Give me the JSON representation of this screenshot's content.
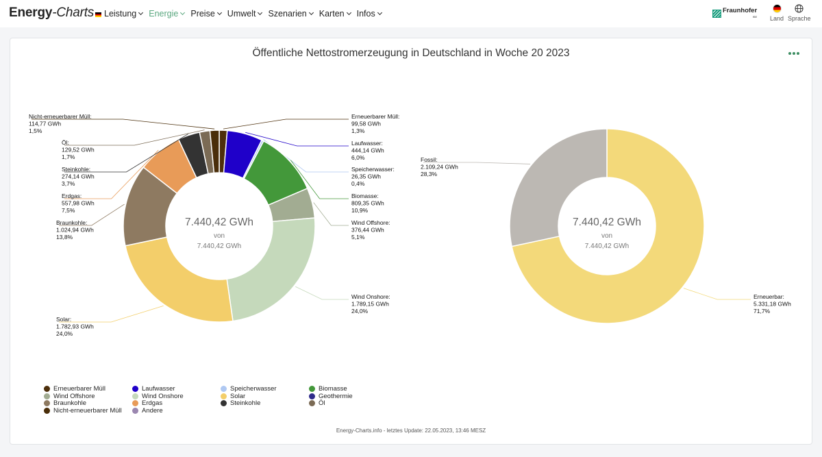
{
  "header": {
    "brand_bold": "Energy",
    "brand_thin": "-Charts",
    "nav": [
      "Leistung",
      "Energie",
      "Preise",
      "Umwelt",
      "Szenarien",
      "Karten",
      "Infos"
    ],
    "active_nav": "Energie",
    "partner": "Fraunhofer",
    "partner_sub": "ISE",
    "country_label": "Land",
    "language_label": "Sprache"
  },
  "footer": "Energy-Charts.info - letztes Update: 22.05.2023, 13:46 MESZ",
  "colors": {
    "accent": "#5aa77f",
    "menu_dots": "#3e8e63"
  },
  "chart_data": [
    {
      "type": "pie",
      "title": "Öffentliche Nettostromerzeugung in Deutschland in Woche 20 2023",
      "unit": "GWh",
      "center_value": "7.440,42 GWh",
      "center_of": "von",
      "center_total": "7.440,42 GWh",
      "slices": [
        {
          "name": "Erneuerbarer Müll",
          "value": 99.58,
          "label_value": "99,58 GWh",
          "percent": "1,3%",
          "color": "#4d2f0b"
        },
        {
          "name": "Laufwasser",
          "value": 444.14,
          "label_value": "444,14 GWh",
          "percent": "6,0%",
          "color": "#1f00c9"
        },
        {
          "name": "Speicherwasser",
          "value": 26.35,
          "label_value": "26,35 GWh",
          "percent": "0,4%",
          "color": "#afc8f2"
        },
        {
          "name": "Biomasse",
          "value": 809.35,
          "label_value": "809,35 GWh",
          "percent": "10,9%",
          "color": "#43983a"
        },
        {
          "name": "Wind Offshore",
          "value": 376.44,
          "label_value": "376,44 GWh",
          "percent": "5,1%",
          "color": "#a2ac92"
        },
        {
          "name": "Wind Onshore",
          "value": 1789.15,
          "label_value": "1.789,15 GWh",
          "percent": "24,0%",
          "color": "#c5d9bb"
        },
        {
          "name": "Solar",
          "value": 1782.93,
          "label_value": "1.782,93 GWh",
          "percent": "24,0%",
          "color": "#f3ce6a"
        },
        {
          "name": "Braunkohle",
          "value": 1024.94,
          "label_value": "1.024,94 GWh",
          "percent": "13,8%",
          "color": "#8e7a61"
        },
        {
          "name": "Erdgas",
          "value": 557.98,
          "label_value": "557,98 GWh",
          "percent": "7,5%",
          "color": "#e89b58"
        },
        {
          "name": "Steinkohle",
          "value": 274.14,
          "label_value": "274,14 GWh",
          "percent": "3,7%",
          "color": "#333333"
        },
        {
          "name": "Öl",
          "value": 129.52,
          "label_value": "129,52 GWh",
          "percent": "1,7%",
          "color": "#7b6b55"
        },
        {
          "name": "Nicht-erneuerbarer Müll",
          "value": 114.77,
          "label_value": "114,77 GWh",
          "percent": "1,5%",
          "color": "#4a2e0a"
        }
      ]
    },
    {
      "type": "pie",
      "center_value": "7.440,42 GWh",
      "center_of": "von",
      "center_total": "7.440,42 GWh",
      "slices": [
        {
          "name": "Erneuerbar",
          "value": 5331.18,
          "label_value": "5.331,18 GWh",
          "percent": "71,7%",
          "color": "#f3d97a"
        },
        {
          "name": "Fossil",
          "value": 2109.24,
          "label_value": "2.109,24 GWh",
          "percent": "28,3%",
          "color": "#bcb8b3"
        }
      ]
    }
  ],
  "legend": [
    {
      "name": "Erneuerbarer Müll",
      "color": "#4d2f0b"
    },
    {
      "name": "Laufwasser",
      "color": "#1f00c9"
    },
    {
      "name": "Speicherwasser",
      "color": "#afc8f2"
    },
    {
      "name": "Biomasse",
      "color": "#43983a"
    },
    {
      "name": "Wind Offshore",
      "color": "#a2ac92"
    },
    {
      "name": "Wind Onshore",
      "color": "#c5d9bb"
    },
    {
      "name": "Solar",
      "color": "#f3ce6a"
    },
    {
      "name": "Geothermie",
      "color": "#2e2a8a"
    },
    {
      "name": "Braunkohle",
      "color": "#8e7a61"
    },
    {
      "name": "Erdgas",
      "color": "#e89b58"
    },
    {
      "name": "Steinkohle",
      "color": "#333333"
    },
    {
      "name": "Öl",
      "color": "#7b6b55"
    },
    {
      "name": "Nicht-erneuerbarer Müll",
      "color": "#4a2e0a"
    },
    {
      "name": "Andere",
      "color": "#9b87b0"
    }
  ]
}
